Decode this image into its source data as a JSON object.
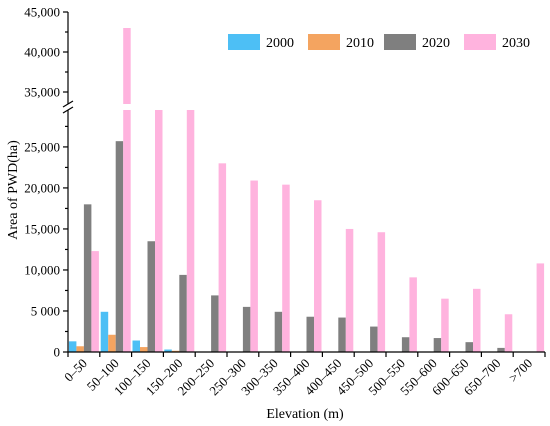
{
  "chart_data": {
    "type": "bar",
    "title": "",
    "xlabel": "Elevation (m)",
    "ylabel": "Area of PWD(ha)",
    "categories": [
      "0–50",
      "50–100",
      "100–150",
      "150–200",
      "200–250",
      "250–300",
      "300–350",
      "350–400",
      "400–450",
      "450–500",
      "500–550",
      "550–600",
      "600–650",
      "650–700",
      ">700"
    ],
    "series": [
      {
        "name": "2000",
        "color": "#4DBFF5",
        "values": [
          1300,
          4900,
          1400,
          300,
          0,
          0,
          0,
          0,
          0,
          0,
          0,
          0,
          0,
          0,
          0
        ]
      },
      {
        "name": "2010",
        "color": "#F4A460",
        "values": [
          700,
          2100,
          600,
          150,
          0,
          0,
          0,
          0,
          0,
          0,
          0,
          0,
          0,
          0,
          0
        ]
      },
      {
        "name": "2020",
        "color": "#7F7F7F",
        "values": [
          18000,
          25700,
          13500,
          9400,
          6900,
          5500,
          4900,
          4300,
          4200,
          3100,
          1800,
          1700,
          1200,
          500,
          0
        ]
      },
      {
        "name": "2030",
        "color": "#FFB3DE",
        "values": [
          12300,
          43000,
          31000,
          31000,
          23000,
          20900,
          20400,
          18500,
          15000,
          14600,
          9100,
          6500,
          7700,
          4600,
          10800
        ]
      }
    ],
    "y_axis": {
      "broken": true,
      "lower_range": [
        0,
        29500
      ],
      "upper_range": [
        33500,
        45000
      ],
      "tick_labels": [
        "0",
        "5 000",
        "10,000",
        "15,000",
        "20,000",
        "25,000",
        "35,000",
        "40,000",
        "45,000"
      ]
    },
    "legend": {
      "position": "top-right",
      "orientation": "horizontal"
    },
    "grid": false
  }
}
